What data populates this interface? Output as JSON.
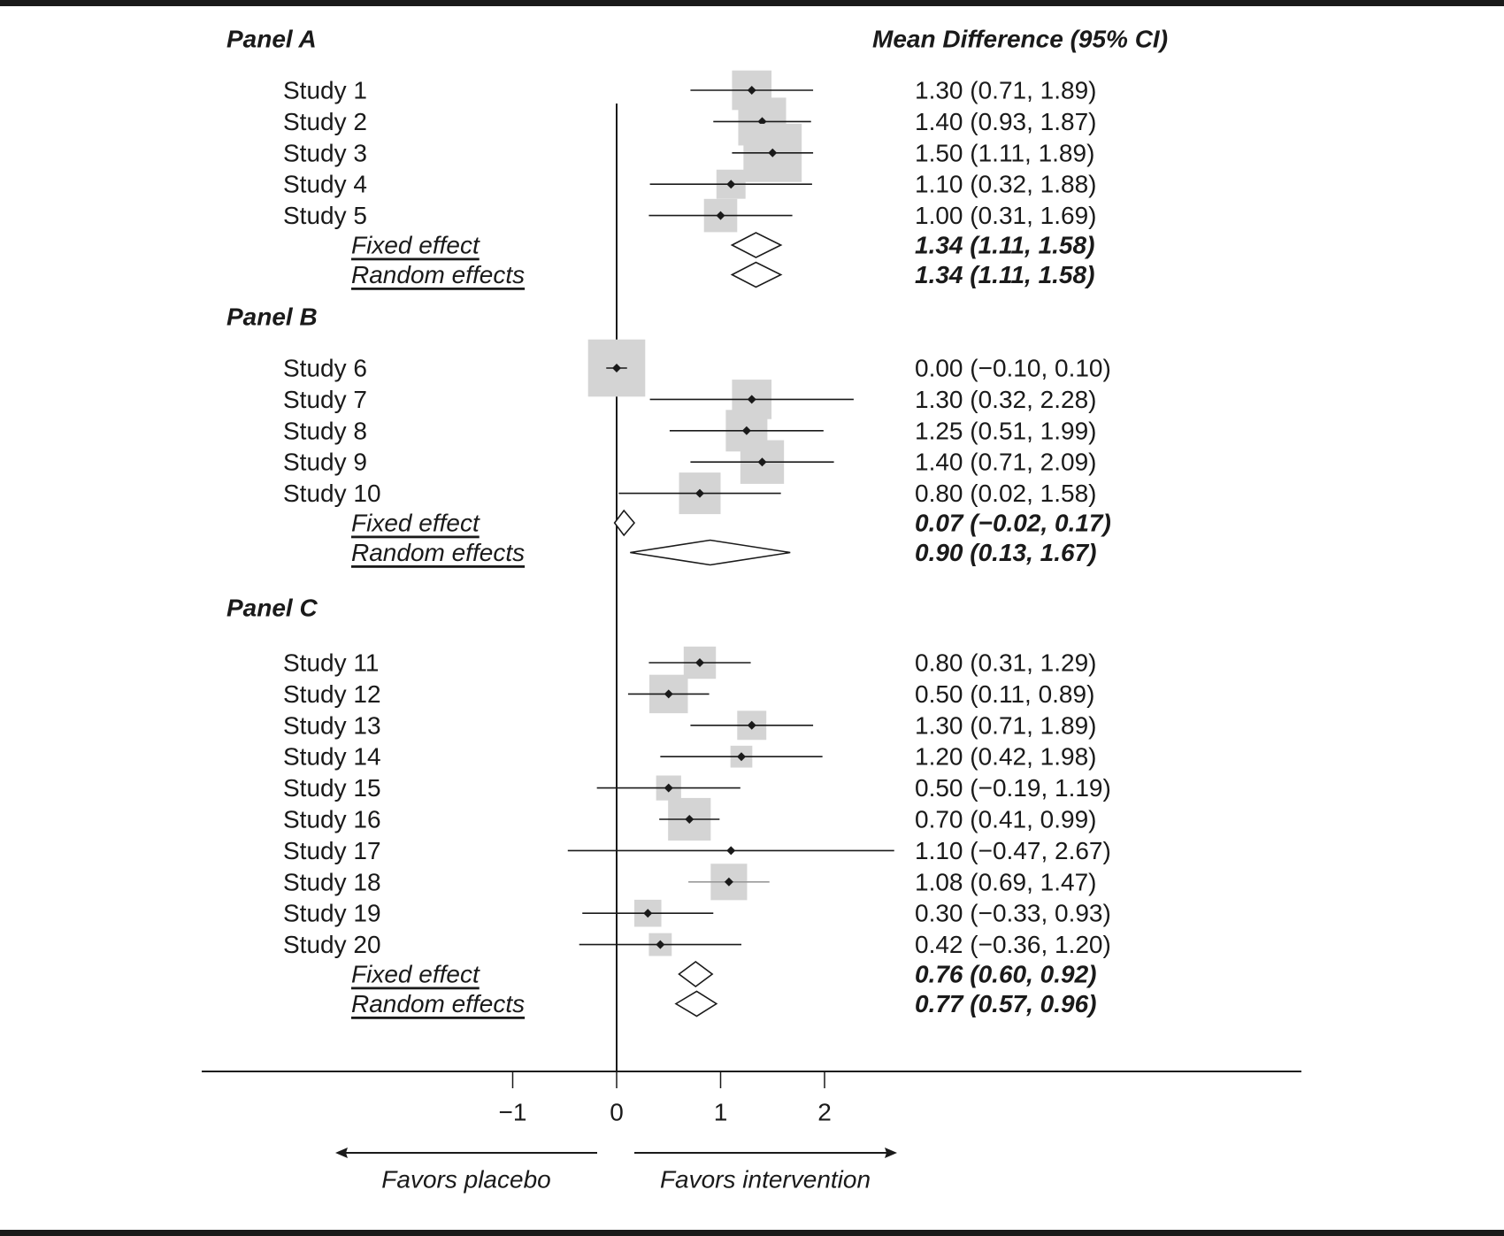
{
  "chart_data": {
    "type": "forest",
    "header": "Mean Difference (95% CI)",
    "xticks": [
      "−1",
      "0",
      "1",
      "2"
    ],
    "xtick_values": [
      -1,
      0,
      1,
      2
    ],
    "reference_line": 0,
    "left_direction": "Favors placebo",
    "right_direction": "Favors intervention",
    "colors": {
      "box": "#d4d4d4",
      "line": "#1a1a1a",
      "point": "#1a1a1a"
    },
    "panels": [
      {
        "title": "Panel A",
        "studies": [
          {
            "label": "Study 1",
            "md": 1.3,
            "lo": 0.71,
            "hi": 1.89,
            "text": "1.30 (0.71, 1.89)",
            "box": 0.38
          },
          {
            "label": "Study 2",
            "md": 1.4,
            "lo": 0.93,
            "hi": 1.87,
            "text": "1.40 (0.93, 1.87)",
            "box": 0.46
          },
          {
            "label": "Study 3",
            "md": 1.5,
            "lo": 1.11,
            "hi": 1.89,
            "text": "1.50 (1.11, 1.89)",
            "box": 0.56
          },
          {
            "label": "Study 4",
            "md": 1.1,
            "lo": 0.32,
            "hi": 1.88,
            "text": "1.10 (0.32, 1.88)",
            "box": 0.28
          },
          {
            "label": "Study 5",
            "md": 1.0,
            "lo": 0.31,
            "hi": 1.69,
            "text": "1.00 (0.31, 1.69)",
            "box": 0.32
          }
        ],
        "pooled": [
          {
            "label": "Fixed effect",
            "md": 1.34,
            "lo": 1.11,
            "hi": 1.58,
            "text": "1.34 (1.11, 1.58)"
          },
          {
            "label": "Random effects",
            "md": 1.34,
            "lo": 1.11,
            "hi": 1.58,
            "text": "1.34 (1.11, 1.58)"
          }
        ]
      },
      {
        "title": "Panel B",
        "studies": [
          {
            "label": "Study 6",
            "md": 0.0,
            "lo": -0.1,
            "hi": 0.1,
            "text": "0.00 (−0.10, 0.10)",
            "box": 0.55
          },
          {
            "label": "Study 7",
            "md": 1.3,
            "lo": 0.32,
            "hi": 2.28,
            "text": "1.30 (0.32, 2.28)",
            "box": 0.38
          },
          {
            "label": "Study 8",
            "md": 1.25,
            "lo": 0.51,
            "hi": 1.99,
            "text": "1.25 (0.51, 1.99)",
            "box": 0.4
          },
          {
            "label": "Study 9",
            "md": 1.4,
            "lo": 0.71,
            "hi": 2.09,
            "text": "1.40 (0.71, 2.09)",
            "box": 0.42
          },
          {
            "label": "Study 10",
            "md": 0.8,
            "lo": 0.02,
            "hi": 1.58,
            "text": "0.80 (0.02, 1.58)",
            "box": 0.4
          }
        ],
        "pooled": [
          {
            "label": "Fixed effect",
            "md": 0.07,
            "lo": -0.02,
            "hi": 0.17,
            "text": "0.07 (−0.02, 0.17)"
          },
          {
            "label": "Random effects",
            "md": 0.9,
            "lo": 0.13,
            "hi": 1.67,
            "text": "0.90 (0.13, 1.67)"
          }
        ]
      },
      {
        "title": "Panel C",
        "studies": [
          {
            "label": "Study 11",
            "md": 0.8,
            "lo": 0.31,
            "hi": 1.29,
            "text": "0.80 (0.31, 1.29)",
            "box": 0.31
          },
          {
            "label": "Study 12",
            "md": 0.5,
            "lo": 0.11,
            "hi": 0.89,
            "text": "0.50 (0.11, 0.89)",
            "box": 0.37
          },
          {
            "label": "Study 13",
            "md": 1.3,
            "lo": 0.71,
            "hi": 1.89,
            "text": "1.30 (0.71, 1.89)",
            "box": 0.28
          },
          {
            "label": "Study 14",
            "md": 1.2,
            "lo": 0.42,
            "hi": 1.98,
            "text": "1.20 (0.42, 1.98)",
            "box": 0.21
          },
          {
            "label": "Study 15",
            "md": 0.5,
            "lo": -0.19,
            "hi": 1.19,
            "text": "0.50 (−0.19, 1.19)",
            "box": 0.24
          },
          {
            "label": "Study 16",
            "md": 0.7,
            "lo": 0.41,
            "hi": 0.99,
            "text": "0.70 (0.41, 0.99)",
            "box": 0.41
          },
          {
            "label": "Study 17",
            "md": 1.1,
            "lo": -0.47,
            "hi": 2.67,
            "text": "1.10 (−0.47, 2.67)",
            "box": 0.0
          },
          {
            "label": "Study 18",
            "md": 1.08,
            "lo": 0.69,
            "hi": 1.47,
            "text": "1.08 (0.69, 1.47)",
            "box": 0.35
          },
          {
            "label": "Study 19",
            "md": 0.3,
            "lo": -0.33,
            "hi": 0.93,
            "text": "0.30 (−0.33, 0.93)",
            "box": 0.26
          },
          {
            "label": "Study 20",
            "md": 0.42,
            "lo": -0.36,
            "hi": 1.2,
            "text": "0.42 (−0.36, 1.20)",
            "box": 0.22
          }
        ],
        "pooled": [
          {
            "label": "Fixed effect",
            "md": 0.76,
            "lo": 0.6,
            "hi": 0.92,
            "text": "0.76 (0.60, 0.92)"
          },
          {
            "label": "Random effects",
            "md": 0.77,
            "lo": 0.57,
            "hi": 0.96,
            "text": "0.77 (0.57, 0.96)"
          }
        ]
      }
    ]
  }
}
